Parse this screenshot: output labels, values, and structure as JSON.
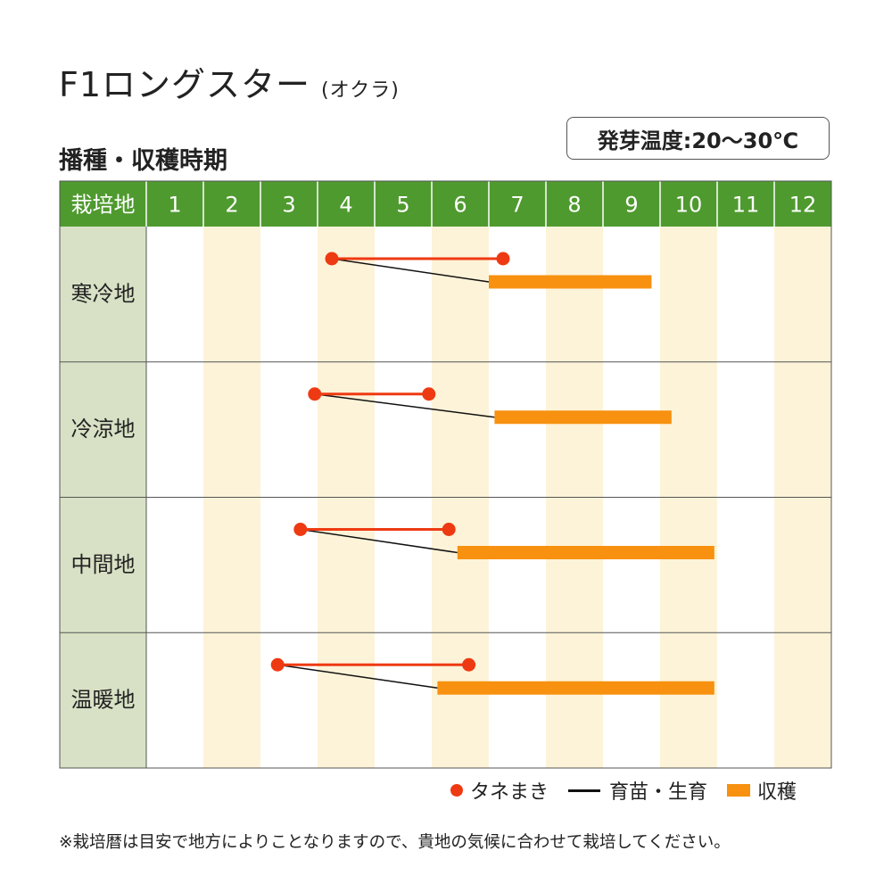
{
  "title": "F1ロングスター",
  "subtitle": "(オクラ)",
  "section_title": "播種・収穫時期",
  "germination": "発芽温度:20〜30℃",
  "footnote": "※栽培暦は目安で地方によりことなりますので、貴地の気候に合わせて栽培してください。",
  "colors": {
    "header_green": "#4f9a2f",
    "region_bg": "#d8e1c5",
    "stripe": "#fdf3d8",
    "sowing_red": "#ee3a12",
    "seedling_black": "#111111",
    "harvest_orange": "#f7910f",
    "grid_border": "#555555"
  },
  "legend": {
    "sowing": "タネまき",
    "seedling": "育苗・生育",
    "harvest": "収穫"
  },
  "chart_data": {
    "type": "gantt",
    "header_label": "栽培地",
    "months": [
      "1",
      "2",
      "3",
      "4",
      "5",
      "6",
      "7",
      "8",
      "9",
      "10",
      "11",
      "12"
    ],
    "rows": [
      {
        "region": "寒冷地",
        "sowing": [
          4.25,
          7.25
        ],
        "harvest": [
          7.0,
          9.85
        ]
      },
      {
        "region": "冷涼地",
        "sowing": [
          3.95,
          5.95
        ],
        "harvest": [
          7.1,
          10.2
        ]
      },
      {
        "region": "中間地",
        "sowing": [
          3.7,
          6.3
        ],
        "harvest": [
          6.45,
          10.95
        ]
      },
      {
        "region": "温暖地",
        "sowing": [
          3.3,
          6.65
        ],
        "harvest": [
          6.1,
          10.95
        ]
      }
    ]
  }
}
